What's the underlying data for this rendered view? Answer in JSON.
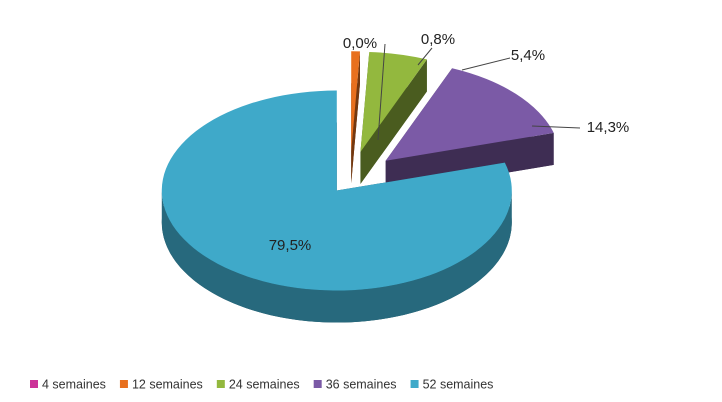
{
  "chart_data": {
    "type": "pie3d",
    "categories": [
      "4 semaines",
      "12 semaines",
      "24 semaines",
      "36 semaines",
      "52 semaines"
    ],
    "values": [
      0.0,
      0.8,
      5.4,
      14.3,
      79.5
    ],
    "value_labels": [
      "0,0%",
      "0,8%",
      "5,4%",
      "14,3%",
      "79,5%"
    ],
    "colors": [
      "#cc3399",
      "#e8701e",
      "#93b83e",
      "#7b5aa6",
      "#3fa9c9"
    ],
    "legend": "bottom"
  }
}
